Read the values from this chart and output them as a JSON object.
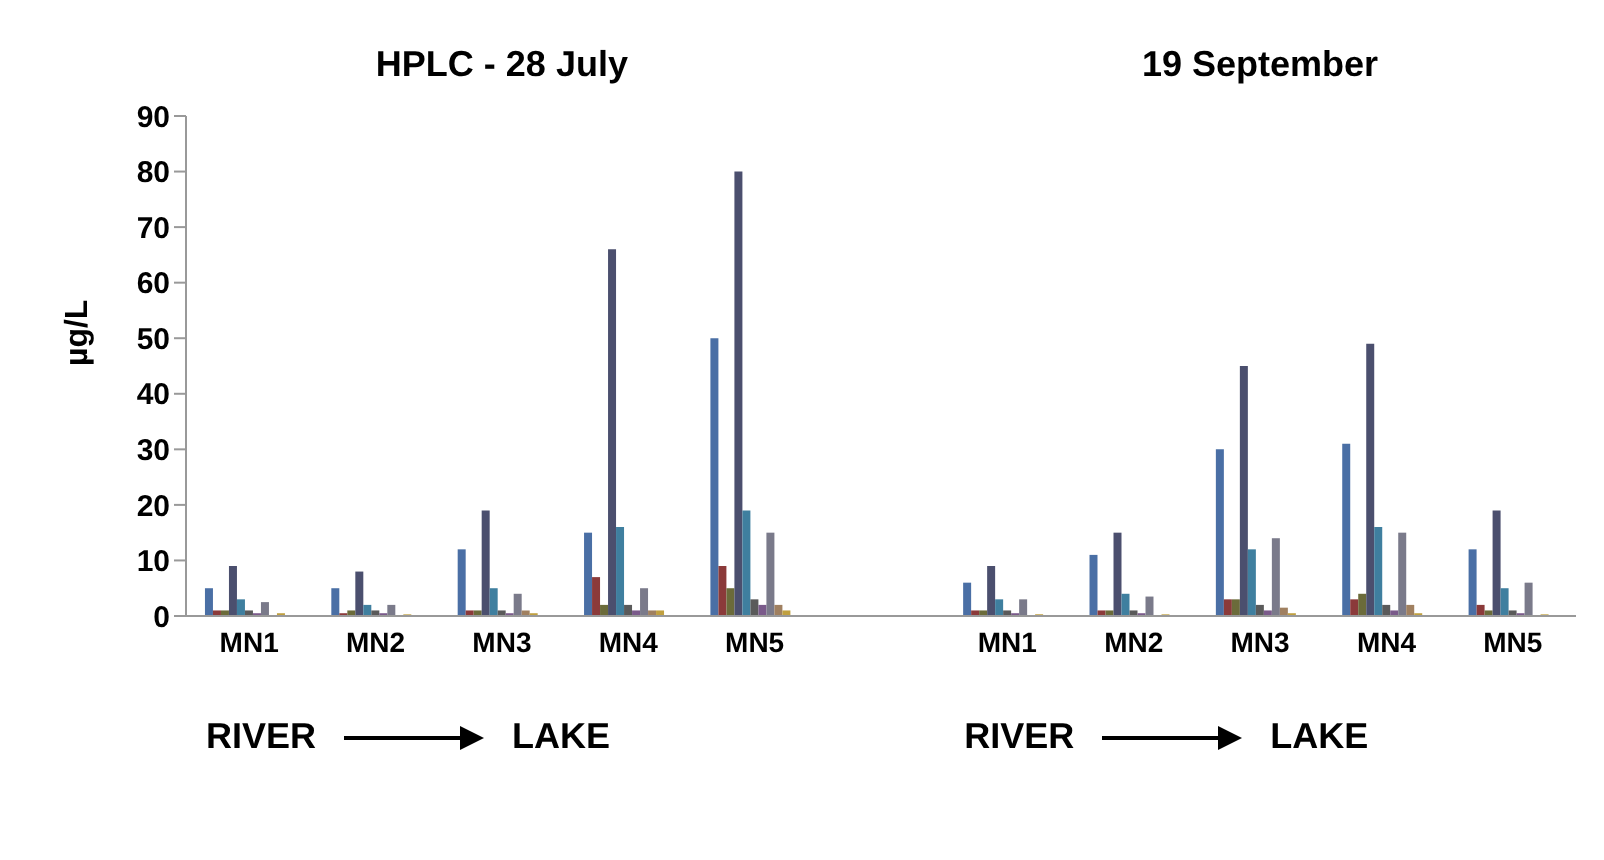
{
  "chart_data": {
    "type": "bar",
    "ylabel": "µg/L",
    "annotations": [
      "HPLC - 28 July",
      "19 September",
      "RIVER",
      "LAKE",
      "RIVER",
      "LAKE"
    ],
    "categories": [
      "MN1",
      "MN2",
      "MN3",
      "MN4",
      "MN5",
      null,
      "MN1",
      "MN2",
      "MN3",
      "MN4",
      "MN5"
    ],
    "series": [
      {
        "color": "#4a6fa5",
        "values": [
          5,
          5,
          12,
          15,
          50,
          null,
          6,
          11,
          30,
          31,
          12
        ]
      },
      {
        "color": "#8b3a3a",
        "values": [
          1,
          0.5,
          1,
          7,
          9,
          null,
          1,
          1,
          3,
          3,
          2
        ]
      },
      {
        "color": "#6b6b3a",
        "values": [
          1,
          1,
          1,
          2,
          5,
          null,
          1,
          1,
          3,
          4,
          1
        ]
      },
      {
        "color": "#4b4f6e",
        "values": [
          9,
          8,
          19,
          66,
          80,
          null,
          9,
          15,
          45,
          49,
          19
        ]
      },
      {
        "color": "#3f7f9f",
        "values": [
          3,
          2,
          5,
          16,
          19,
          null,
          3,
          4,
          12,
          16,
          5
        ]
      },
      {
        "color": "#5a5a5a",
        "values": [
          1,
          1,
          1,
          2,
          3,
          null,
          1,
          1,
          2,
          2,
          1
        ]
      },
      {
        "color": "#7a5a8a",
        "values": [
          0.5,
          0.5,
          0.5,
          1,
          2,
          null,
          0.5,
          0.5,
          1,
          1,
          0.5
        ]
      },
      {
        "color": "#7a7a8a",
        "values": [
          2.5,
          2,
          4,
          5,
          15,
          null,
          3,
          3.5,
          14,
          15,
          6
        ]
      },
      {
        "color": "#a08060",
        "values": [
          null,
          null,
          1,
          1,
          2,
          null,
          null,
          null,
          1.5,
          2,
          null
        ]
      },
      {
        "color": "#c0a040",
        "values": [
          0.5,
          0.3,
          0.5,
          1,
          1,
          null,
          0.3,
          0.3,
          0.5,
          0.5,
          0.3
        ]
      }
    ],
    "ylim": [
      0,
      90
    ],
    "yticks": [
      0,
      10,
      20,
      30,
      40,
      50,
      60,
      70,
      80,
      90
    ],
    "grid": false,
    "legend": false
  }
}
